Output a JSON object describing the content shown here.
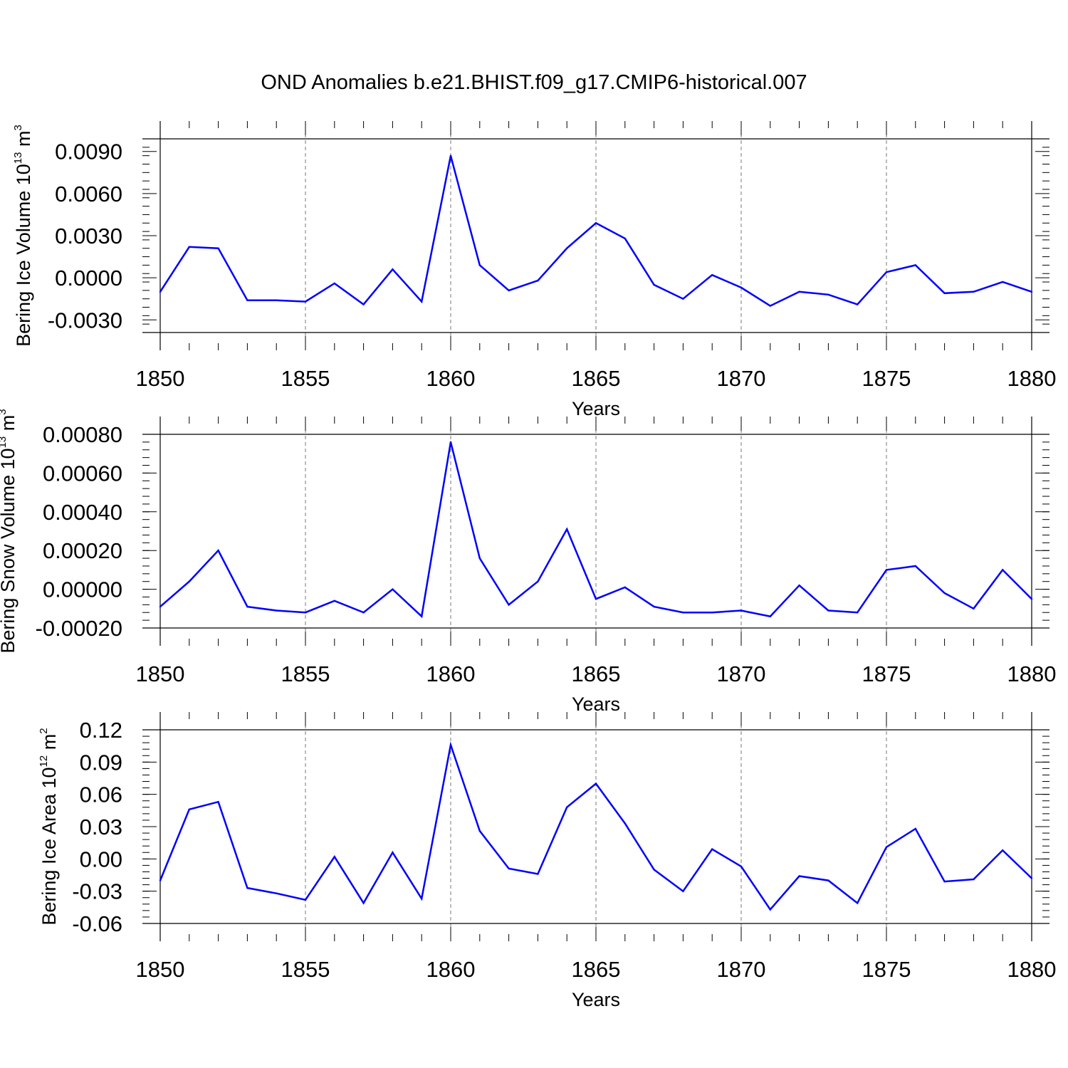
{
  "title": "OND Anomalies b.e21.BHIST.f09_g17.CMIP6-historical.007",
  "colors": {
    "line": "#0000ff",
    "axis": "#000000",
    "grid": "#777777"
  },
  "chart_data": [
    {
      "type": "line",
      "name": "ice-volume",
      "ylabel_main": "Bering Ice Volume 10",
      "ylabel_exp": "13",
      "ylabel_unit": " m",
      "ylabel_unit_exp": "3",
      "xlabel": "Years",
      "xlim": [
        1850,
        1880
      ],
      "ylim": [
        -0.0039,
        0.0099
      ],
      "x_ticks": [
        1850,
        1855,
        1860,
        1865,
        1870,
        1875,
        1880
      ],
      "y_ticks": [
        -0.003,
        0.0,
        0.003,
        0.006,
        0.009
      ],
      "y_tick_labels": [
        "-0.0030",
        "0.0000",
        "0.0030",
        "0.0060",
        "0.0090"
      ],
      "x": [
        1850,
        1851,
        1852,
        1853,
        1854,
        1855,
        1856,
        1857,
        1858,
        1859,
        1860,
        1861,
        1862,
        1863,
        1864,
        1865,
        1866,
        1867,
        1868,
        1869,
        1870,
        1871,
        1872,
        1873,
        1874,
        1875,
        1876,
        1877,
        1878,
        1879,
        1880
      ],
      "values": [
        -0.001,
        0.0022,
        0.0021,
        -0.0016,
        -0.0016,
        -0.0017,
        -0.0004,
        -0.0019,
        0.0006,
        -0.0017,
        0.0087,
        0.0009,
        -0.0009,
        -0.0002,
        0.0021,
        0.0039,
        0.0028,
        -0.0005,
        -0.0015,
        0.0002,
        -0.0007,
        -0.002,
        -0.001,
        -0.0012,
        -0.0019,
        0.0004,
        0.0009,
        -0.0011,
        -0.001,
        -0.0003,
        -0.001
      ]
    },
    {
      "type": "line",
      "name": "snow-volume",
      "ylabel_main": "Bering Snow Volume 10",
      "ylabel_exp": "13",
      "ylabel_unit": " m",
      "ylabel_unit_exp": "3",
      "xlabel": "Years",
      "xlim": [
        1850,
        1880
      ],
      "ylim": [
        -0.0002,
        0.0008
      ],
      "x_ticks": [
        1850,
        1855,
        1860,
        1865,
        1870,
        1875,
        1880
      ],
      "y_ticks": [
        -0.0002,
        0.0,
        0.0002,
        0.0004,
        0.0006,
        0.0008
      ],
      "y_tick_labels": [
        "-0.00020",
        "0.00000",
        "0.00020",
        "0.00040",
        "0.00060",
        "0.00080"
      ],
      "x": [
        1850,
        1851,
        1852,
        1853,
        1854,
        1855,
        1856,
        1857,
        1858,
        1859,
        1860,
        1861,
        1862,
        1863,
        1864,
        1865,
        1866,
        1867,
        1868,
        1869,
        1870,
        1871,
        1872,
        1873,
        1874,
        1875,
        1876,
        1877,
        1878,
        1879,
        1880
      ],
      "values": [
        -9e-05,
        4e-05,
        0.0002,
        -9e-05,
        -0.00011,
        -0.00012,
        -6e-05,
        -0.00012,
        0.0,
        -0.00014,
        0.00076,
        0.00016,
        -8e-05,
        4e-05,
        0.00031,
        -5e-05,
        1e-05,
        -9e-05,
        -0.00012,
        -0.00012,
        -0.00011,
        -0.00014,
        2e-05,
        -0.00011,
        -0.00012,
        0.0001,
        0.00012,
        -2e-05,
        -0.0001,
        0.0001,
        -5e-05
      ]
    },
    {
      "type": "line",
      "name": "ice-area",
      "ylabel_main": "Bering Ice Area 10",
      "ylabel_exp": "12",
      "ylabel_unit": " m",
      "ylabel_unit_exp": "2",
      "xlabel": "Years",
      "xlim": [
        1850,
        1880
      ],
      "ylim": [
        -0.06,
        0.12
      ],
      "x_ticks": [
        1850,
        1855,
        1860,
        1865,
        1870,
        1875,
        1880
      ],
      "y_ticks": [
        -0.06,
        -0.03,
        0.0,
        0.03,
        0.06,
        0.09,
        0.12
      ],
      "y_tick_labels": [
        "-0.06",
        "-0.03",
        "0.00",
        "0.03",
        "0.06",
        "0.09",
        "0.12"
      ],
      "x": [
        1850,
        1851,
        1852,
        1853,
        1854,
        1855,
        1856,
        1857,
        1858,
        1859,
        1860,
        1861,
        1862,
        1863,
        1864,
        1865,
        1866,
        1867,
        1868,
        1869,
        1870,
        1871,
        1872,
        1873,
        1874,
        1875,
        1876,
        1877,
        1878,
        1879,
        1880
      ],
      "values": [
        -0.02,
        0.046,
        0.053,
        -0.027,
        -0.032,
        -0.038,
        0.002,
        -0.041,
        0.006,
        -0.037,
        0.106,
        0.026,
        -0.009,
        -0.014,
        0.048,
        0.07,
        0.033,
        -0.01,
        -0.03,
        0.009,
        -0.007,
        -0.047,
        -0.016,
        -0.02,
        -0.041,
        0.011,
        0.028,
        -0.021,
        -0.019,
        0.008,
        -0.018
      ]
    }
  ]
}
